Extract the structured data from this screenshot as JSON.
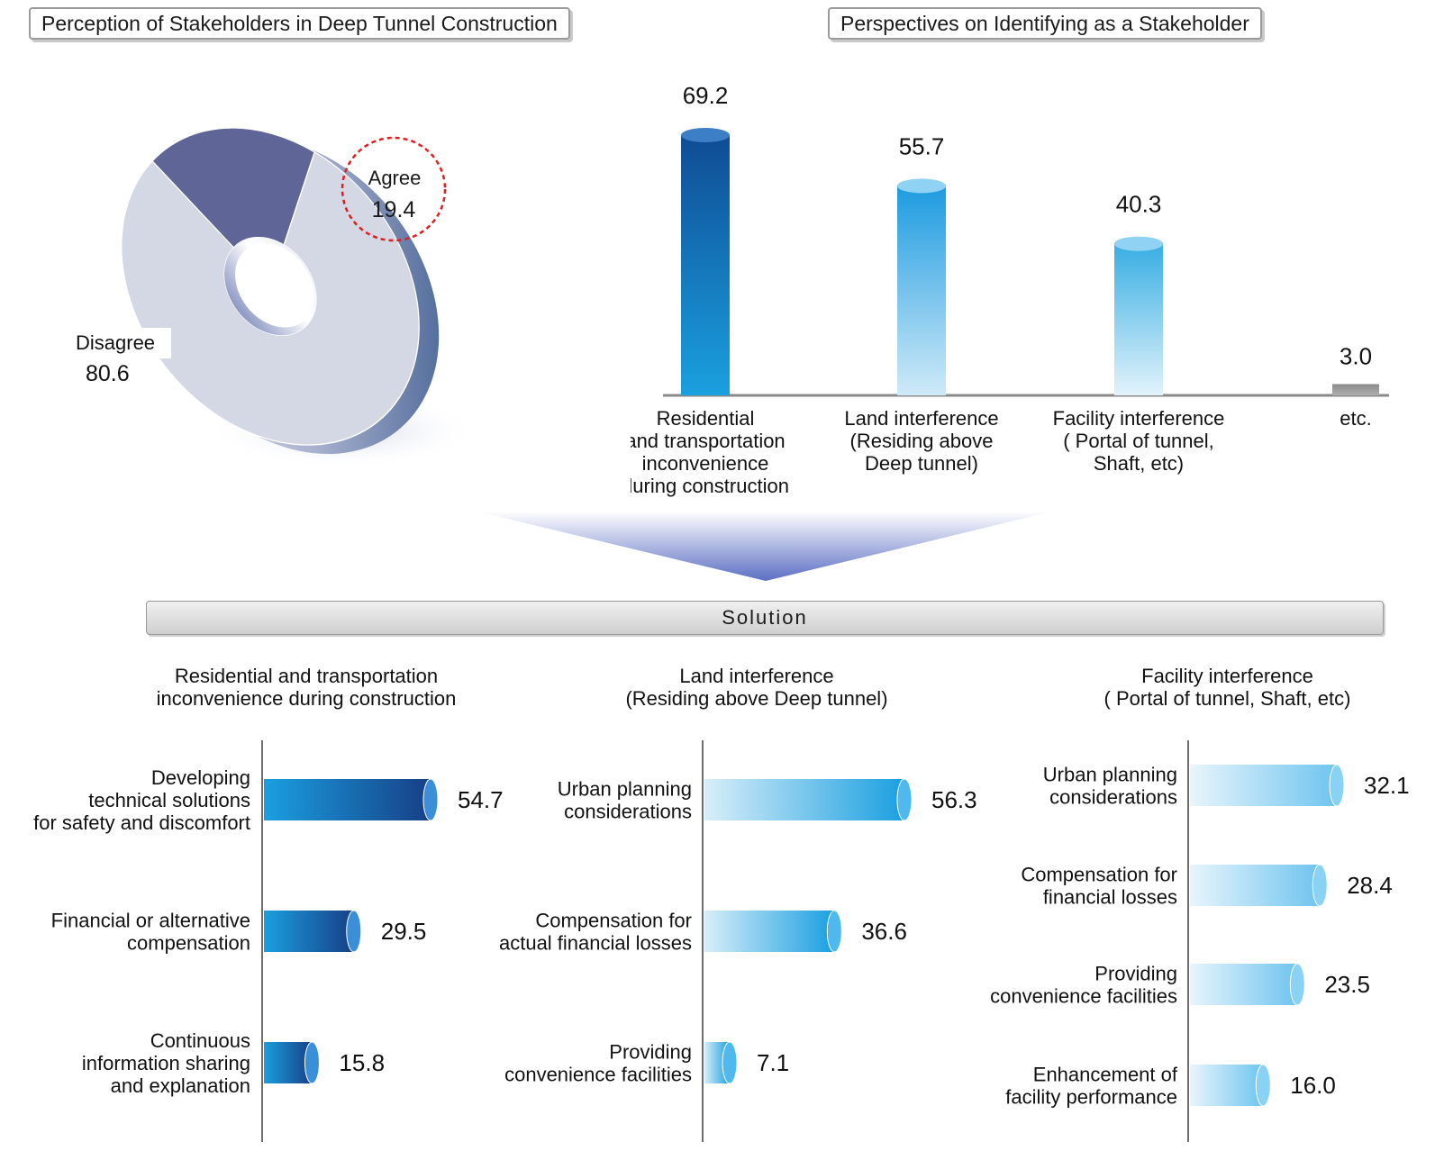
{
  "titles": {
    "left": "Perception of Stakeholders in Deep Tunnel Construction",
    "right": "Perspectives on Identifying as a Stakeholder"
  },
  "solution_label": "Solution",
  "colors": {
    "disagree": "#d4d7e4",
    "agree": "#5f6597",
    "bar_dark": "#1e66ad",
    "bar_mid": "#24a3e0",
    "bar_light": "#bfe4f7",
    "highlight_circle": "#e02020"
  },
  "chart_data": [
    {
      "type": "pie",
      "style": "donut-3d",
      "title": "Perception of Stakeholders in Deep Tunnel Construction",
      "slices": [
        {
          "label": "Agree",
          "value": 19.4
        },
        {
          "label": "Disagree",
          "value": 80.6
        }
      ]
    },
    {
      "type": "bar",
      "orientation": "vertical",
      "title": "Perspectives on Identifying as a Stakeholder",
      "categories": [
        [
          "Residential",
          "and transportation",
          "inconvenience",
          "during construction"
        ],
        [
          "Land interference",
          "(Residing above",
          "Deep tunnel)"
        ],
        [
          "Facility interference",
          "( Portal of tunnel,",
          "Shaft, etc)"
        ],
        [
          "etc."
        ]
      ],
      "values": [
        69.2,
        55.7,
        40.3,
        3.0
      ],
      "value_labels": [
        "69.2",
        "55.7",
        "40.3",
        "3.0"
      ],
      "ylim": [
        0,
        75
      ]
    },
    {
      "type": "bar",
      "orientation": "horizontal",
      "title": [
        "Residential and transportation",
        "inconvenience during construction"
      ],
      "categories": [
        [
          "Developing",
          "technical solutions",
          "for safety and discomfort"
        ],
        [
          "Financial or alternative",
          "compensation"
        ],
        [
          "Continuous",
          "information sharing",
          "and explanation"
        ]
      ],
      "values": [
        54.7,
        29.5,
        15.8
      ],
      "value_labels": [
        "54.7",
        "29.5",
        "15.8"
      ],
      "xlim": [
        0,
        60
      ]
    },
    {
      "type": "bar",
      "orientation": "horizontal",
      "title": [
        "Land interference",
        "(Residing above Deep tunnel)"
      ],
      "categories": [
        [
          "Urban planning",
          "considerations"
        ],
        [
          "Compensation for",
          "actual financial losses"
        ],
        [
          "Providing",
          "convenience facilities"
        ]
      ],
      "values": [
        56.3,
        36.6,
        7.1
      ],
      "value_labels": [
        "56.3",
        "36.6",
        "7.1"
      ],
      "xlim": [
        0,
        60
      ]
    },
    {
      "type": "bar",
      "orientation": "horizontal",
      "title": [
        "Facility interference",
        "( Portal of tunnel, Shaft, etc)"
      ],
      "categories": [
        [
          "Urban planning",
          "considerations"
        ],
        [
          "Compensation for",
          "financial losses"
        ],
        [
          "Providing",
          "convenience facilities"
        ],
        [
          "Enhancement of",
          "facility performance"
        ]
      ],
      "values": [
        32.1,
        28.4,
        23.5,
        16.0
      ],
      "value_labels": [
        "32.1",
        "28.4",
        "23.5",
        "16.0"
      ],
      "xlim": [
        0,
        36
      ]
    }
  ]
}
